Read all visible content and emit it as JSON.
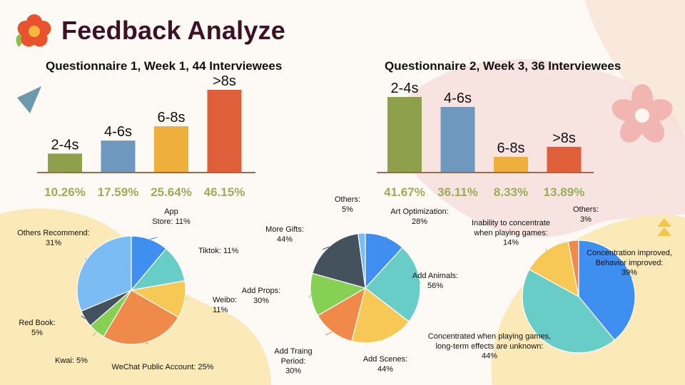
{
  "page": {
    "title": "Feedback Analyze"
  },
  "colors": {
    "title": "#3d1225",
    "percent": "#9aae5a",
    "baseline": "#a0694b",
    "bar_colors": [
      "#8ea04c",
      "#6f98bf",
      "#efaf3c",
      "#df5f3a"
    ]
  },
  "icons": {
    "logo": "flower-icon",
    "decor_left": "triangle-icon",
    "decor_right": "pink-flower-icon",
    "decor_small": "double-chevron-icon"
  },
  "chart_data": [
    {
      "type": "bar",
      "title": "Questionnaire 1, Week 1, 44 Interviewees",
      "categories": [
        "2-4s",
        "4-6s",
        "6-8s",
        ">8s"
      ],
      "values": [
        10.26,
        17.59,
        25.64,
        46.15
      ],
      "value_labels": [
        "10.26%",
        "17.59%",
        "25.64%",
        "46.15%"
      ],
      "ylim": [
        0,
        46.15
      ]
    },
    {
      "type": "bar",
      "title": "Questionnaire 2, Week 3, 36 Interviewees",
      "categories": [
        "2-4s",
        "4-6s",
        "6-8s",
        ">8s"
      ],
      "values": [
        41.67,
        36.11,
        8.33,
        13.89
      ],
      "value_labels": [
        "41.67%",
        "36.11%",
        "8.33%",
        "13.89%"
      ],
      "ylim": [
        0,
        41.67
      ]
    },
    {
      "type": "pie",
      "slices": [
        {
          "label": "App\nStore: 11%",
          "value": 11,
          "color": "#3f8ff0"
        },
        {
          "label": "Tiktok: 11%",
          "value": 11,
          "color": "#67cdc6"
        },
        {
          "label": "Weibo:\n11%",
          "value": 11,
          "color": "#f8c856"
        },
        {
          "label": "WeChat Public Account: 25%",
          "value": 25,
          "color": "#f08a4b"
        },
        {
          "label": "Kwai: 5%",
          "value": 5,
          "color": "#86d154"
        },
        {
          "label": "Red Book:\n5%",
          "value": 5,
          "color": "#44525e"
        },
        {
          "label": "Others Recommend:\n31%",
          "value": 31,
          "color": "#7bbcf5"
        }
      ]
    },
    {
      "type": "pie",
      "slices": [
        {
          "label": "Art Optimization:\n28%",
          "value": 28,
          "color": "#3f8ff0"
        },
        {
          "label": "Add Animals:\n56%",
          "value": 56,
          "color": "#67cdc6"
        },
        {
          "label": "Add Scenes:\n44%",
          "value": 44,
          "color": "#f8c856"
        },
        {
          "label": "Add Traing\nPeriod:\n30%",
          "value": 30,
          "color": "#f08a4b"
        },
        {
          "label": "Add Props:\n30%",
          "value": 30,
          "color": "#86d154"
        },
        {
          "label": "More Gifts:\n44%",
          "value": 44,
          "color": "#44525e"
        },
        {
          "label": "Others:\n5%",
          "value": 5,
          "color": "#7bbcf5"
        }
      ]
    },
    {
      "type": "pie",
      "slices": [
        {
          "label": "Concentration improved,\nBehavior improved:\n39%",
          "value": 39,
          "color": "#3f8ff0"
        },
        {
          "label": "Concentrated when playing games,\nlong-term effects are unknown:\n44%",
          "value": 44,
          "color": "#67cdc6"
        },
        {
          "label": "Inability to concentrate\nwhen playing games:\n14%",
          "value": 14,
          "color": "#f8c856"
        },
        {
          "label": "Others:\n3%",
          "value": 3,
          "color": "#f08a4b"
        }
      ]
    }
  ]
}
